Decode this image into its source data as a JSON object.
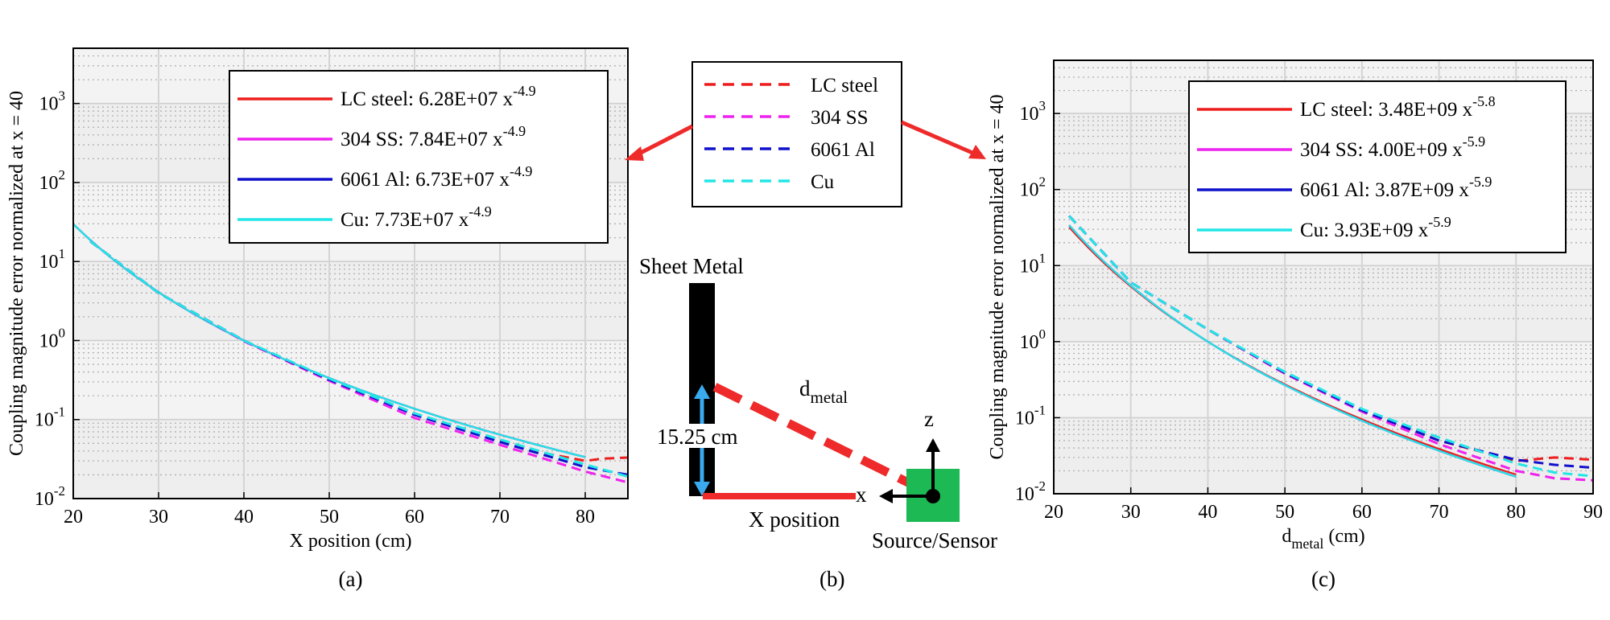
{
  "chart_data": [
    {
      "type": "line",
      "panel_label": "(a)",
      "xlabel": "X position (cm)",
      "ylabel": "Coupling magnitude error normalized at x = 40",
      "xlim": [
        20,
        85
      ],
      "ylim": [
        0.01,
        5000
      ],
      "y_scale": "log",
      "x_ticks": [
        20,
        30,
        40,
        50,
        60,
        70,
        80
      ],
      "grid": true,
      "legend_position": "top-right",
      "series": [
        {
          "name": "LC steel: 6.28E+07 x",
          "exp": "-4.9",
          "color": "#ee1c1c",
          "dashed": true,
          "x": [
            22,
            30,
            40,
            50,
            60,
            70,
            75,
            80,
            82,
            85
          ],
          "y": [
            18,
            4.0,
            1.0,
            0.32,
            0.12,
            0.055,
            0.038,
            0.03,
            0.032,
            0.033
          ]
        },
        {
          "name": "304 SS: 7.84E+07 x",
          "exp": "-4.9",
          "color": "#ee22ee",
          "dashed": true,
          "x": [
            22,
            30,
            40,
            50,
            60,
            70,
            80,
            85
          ],
          "y": [
            18,
            4.0,
            0.98,
            0.31,
            0.105,
            0.048,
            0.022,
            0.016
          ]
        },
        {
          "name": "6061 Al: 6.73E+07 x",
          "exp": "-4.9",
          "color": "#1010cc",
          "dashed": true,
          "x": [
            22,
            30,
            40,
            50,
            60,
            70,
            80,
            85
          ],
          "y": [
            18,
            4.0,
            1.0,
            0.32,
            0.115,
            0.052,
            0.025,
            0.02
          ]
        },
        {
          "name": "Cu: 7.73E+07 x",
          "exp": "-4.9",
          "color": "#22e6e6",
          "dashed": true,
          "x": [
            22,
            30,
            40,
            50,
            60,
            70,
            80,
            85
          ],
          "y": [
            18,
            4.0,
            1.0,
            0.33,
            0.12,
            0.056,
            0.027,
            0.019
          ]
        }
      ],
      "fits": [
        {
          "color": "#ee1c1c",
          "coef": 62800000,
          "exp": -4.9,
          "x_range": [
            20,
            80
          ]
        },
        {
          "color": "#ee22ee",
          "coef": 78400000,
          "exp": -4.9,
          "x_range": [
            20,
            80
          ]
        },
        {
          "color": "#1010cc",
          "coef": 67300000,
          "exp": -4.9,
          "x_range": [
            20,
            80
          ]
        },
        {
          "color": "#22e6e6",
          "coef": 77300000,
          "exp": -4.9,
          "x_range": [
            20,
            80
          ]
        }
      ]
    },
    {
      "type": "line",
      "panel_label": "(c)",
      "xlabel_main": "d",
      "xlabel_sub": "metal",
      "xlabel_rest": " (cm)",
      "ylabel": "Coupling magnitude error normalized at x = 40",
      "xlim": [
        20,
        90
      ],
      "ylim": [
        0.01,
        5000
      ],
      "y_scale": "log",
      "x_ticks": [
        20,
        30,
        40,
        50,
        60,
        70,
        80,
        90
      ],
      "grid": true,
      "legend_position": "top-right",
      "series": [
        {
          "name": "LC steel: 3.48E+09 x",
          "exp": "-5.8",
          "color": "#ee1c1c",
          "dashed": true,
          "x": [
            22,
            30,
            40,
            50,
            60,
            70,
            80,
            85,
            90
          ],
          "y": [
            45,
            6.0,
            1.45,
            0.38,
            0.125,
            0.05,
            0.027,
            0.03,
            0.028
          ]
        },
        {
          "name": "304 SS: 4.00E+09 x",
          "exp": "-5.9",
          "color": "#ee22ee",
          "dashed": true,
          "x": [
            22,
            30,
            40,
            50,
            60,
            70,
            80,
            85,
            90
          ],
          "y": [
            45,
            6.0,
            1.45,
            0.38,
            0.12,
            0.045,
            0.02,
            0.016,
            0.015
          ]
        },
        {
          "name": "6061 Al: 3.87E+09 x",
          "exp": "-5.9",
          "color": "#1010cc",
          "dashed": true,
          "x": [
            22,
            30,
            40,
            50,
            60,
            70,
            80,
            85,
            90
          ],
          "y": [
            45,
            6.0,
            1.45,
            0.39,
            0.125,
            0.05,
            0.028,
            0.024,
            0.022
          ]
        },
        {
          "name": "Cu: 3.93E+09 x",
          "exp": "-5.9",
          "color": "#22e6e6",
          "dashed": true,
          "x": [
            22,
            30,
            40,
            50,
            60,
            70,
            80,
            85,
            90
          ],
          "y": [
            45,
            6.0,
            1.45,
            0.4,
            0.13,
            0.055,
            0.025,
            0.019,
            0.017
          ]
        }
      ],
      "fits": [
        {
          "color": "#ee1c1c",
          "coef": 3480000000,
          "exp": -5.8,
          "x_range": [
            22,
            80
          ]
        },
        {
          "color": "#ee22ee",
          "coef": 4000000000,
          "exp": -5.9,
          "x_range": [
            22,
            80
          ]
        },
        {
          "color": "#1010cc",
          "coef": 3870000000,
          "exp": -5.9,
          "x_range": [
            22,
            80
          ]
        },
        {
          "color": "#22e6e6",
          "coef": 3930000000,
          "exp": -5.9,
          "x_range": [
            22,
            80
          ]
        }
      ]
    }
  ],
  "middle": {
    "legend": [
      {
        "name": "LC steel",
        "color": "#ee1c1c"
      },
      {
        "name": "304 SS",
        "color": "#ee22ee"
      },
      {
        "name": "6061 Al",
        "color": "#1010cc"
      },
      {
        "name": "Cu",
        "color": "#22e6e6"
      }
    ],
    "sheet_label": "Sheet Metal",
    "height_label": "15.25 cm",
    "dmetal_main": "d",
    "dmetal_sub": "metal",
    "x_axis_label": "X position",
    "x_letter": "x",
    "z_letter": "z",
    "sensor_label": "Source/Sensor",
    "panel_label": "(b)",
    "colors": {
      "sheet": "#000000",
      "red": "#ee2a2a",
      "blue": "#3aa9ee",
      "sensor": "#1db954"
    }
  }
}
